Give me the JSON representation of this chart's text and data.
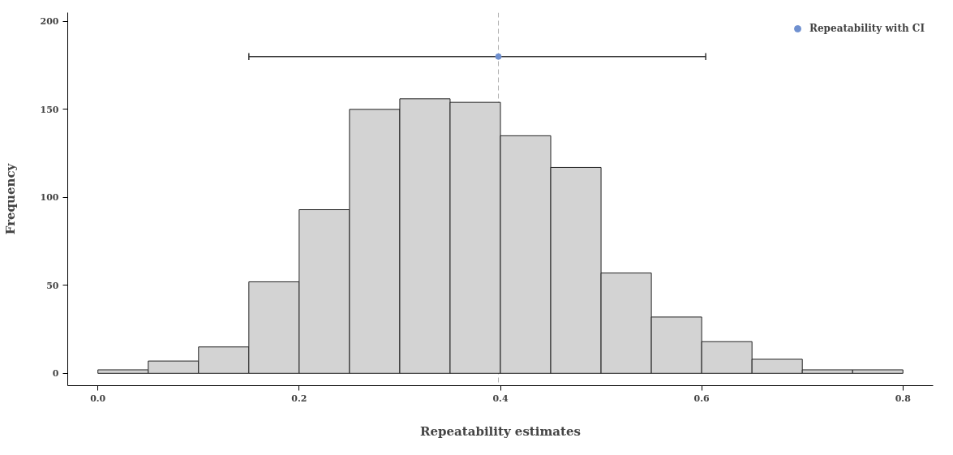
{
  "chart_data": {
    "type": "histogram",
    "xlabel": "Repeatability estimates",
    "ylabel": "Frequency",
    "bins": [
      0.0,
      0.05,
      0.1,
      0.15,
      0.2,
      0.25,
      0.3,
      0.35,
      0.4,
      0.45,
      0.5,
      0.55,
      0.6,
      0.65,
      0.7,
      0.75,
      0.8
    ],
    "values": [
      2,
      7,
      15,
      52,
      93,
      150,
      156,
      154,
      135,
      117,
      57,
      32,
      18,
      8,
      2,
      2
    ],
    "color": "#d3d3d3",
    "series": [
      {
        "name": "Repeatability with CI",
        "type": "scatter",
        "color": "#6f90d0",
        "x": [
          0.398
        ],
        "values": [
          180
        ],
        "xerrors": [
          [
            0.15,
            0.604
          ]
        ]
      }
    ],
    "ref_lines": [
      {
        "axis": "x",
        "value": 0.398,
        "label": null,
        "color": "#b0b0b0",
        "line_style": "dashed"
      }
    ],
    "xlim": [
      -0.03,
      0.83
    ],
    "ylim": [
      -7,
      205
    ],
    "xticks": [
      {
        "value": 0,
        "label": "0.0"
      },
      0.2,
      0.4,
      0.6,
      0.8
    ],
    "yticks": [
      0,
      50,
      100,
      150,
      200
    ],
    "grid": false,
    "legend": "top right",
    "marker": "circle"
  }
}
